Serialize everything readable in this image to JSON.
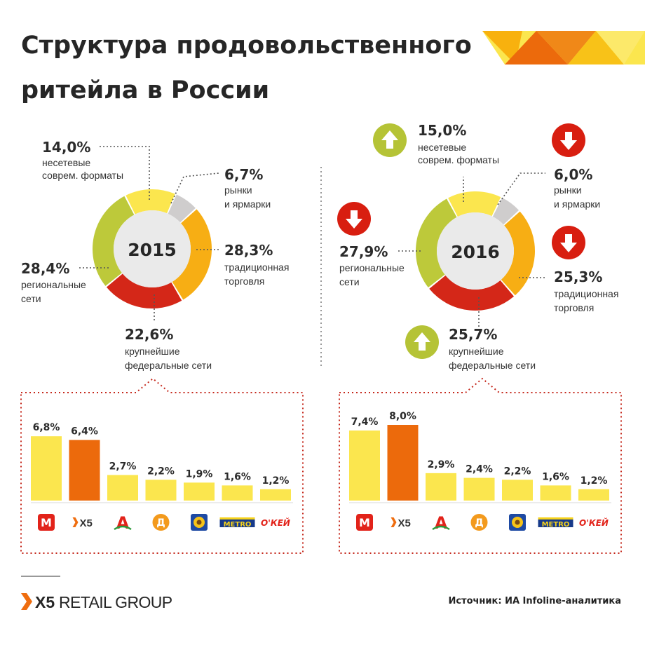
{
  "title_line1": "Структура продовольственного",
  "title_line2": "ритейла в России",
  "source": "Источник: ИА Infoline-аналитика",
  "brand": {
    "mark": "X5",
    "name": "RETAIL GROUP"
  },
  "colors": {
    "yellow_light": "#fbe64e",
    "gray": "#cfcdcd",
    "orange": "#f7ae14",
    "red": "#d42718",
    "green": "#bdc93a",
    "bar_yellow": "#fbe64e",
    "bar_orange": "#ec6a0c",
    "arrow_up": "#b5c336",
    "arrow_down": "#d81e10"
  },
  "retailers": [
    {
      "name": "Магнит",
      "glyph": "М"
    },
    {
      "name": "X5",
      "glyph": "X5"
    },
    {
      "name": "Ашан",
      "glyph": "A"
    },
    {
      "name": "Дикси",
      "glyph": "Д"
    },
    {
      "name": "Лента",
      "glyph": "✿"
    },
    {
      "name": "METRO",
      "glyph": "METRO"
    },
    {
      "name": "О'КЕЙ",
      "glyph": "О'КЕЙ"
    }
  ],
  "chart_data": [
    {
      "type": "pie",
      "year": "2015",
      "segments": [
        {
          "key": "nonchain",
          "value": 14.0,
          "value_label": "14,0%",
          "label_lines": [
            "несетевые",
            "соврем. форматы"
          ],
          "color": "#fbe64e"
        },
        {
          "key": "markets",
          "value": 6.7,
          "value_label": "6,7%",
          "label_lines": [
            "рынки",
            "и ярмарки"
          ],
          "color": "#cfcdcd"
        },
        {
          "key": "traditional",
          "value": 28.3,
          "value_label": "28,3%",
          "label_lines": [
            "традиционная",
            "торговля"
          ],
          "color": "#f7ae14"
        },
        {
          "key": "federal",
          "value": 22.6,
          "value_label": "22,6%",
          "label_lines": [
            "крупнейшие",
            "федеральные сети"
          ],
          "color": "#d42718"
        },
        {
          "key": "regional",
          "value": 28.4,
          "value_label": "28,4%",
          "label_lines": [
            "региональные",
            "сети"
          ],
          "color": "#bdc93a"
        }
      ]
    },
    {
      "type": "pie",
      "year": "2016",
      "segments": [
        {
          "key": "nonchain",
          "value": 15.0,
          "value_label": "15,0%",
          "label_lines": [
            "несетевые",
            "соврем. форматы"
          ],
          "color": "#fbe64e",
          "trend": "up"
        },
        {
          "key": "markets",
          "value": 6.0,
          "value_label": "6,0%",
          "label_lines": [
            "рынки",
            "и ярмарки"
          ],
          "color": "#cfcdcd",
          "trend": "down"
        },
        {
          "key": "traditional",
          "value": 25.3,
          "value_label": "25,3%",
          "label_lines": [
            "традиционная",
            "торговля"
          ],
          "color": "#f7ae14",
          "trend": "down"
        },
        {
          "key": "federal",
          "value": 25.7,
          "value_label": "25,7%",
          "label_lines": [
            "крупнейшие",
            "федеральные сети"
          ],
          "color": "#d42718",
          "trend": "up"
        },
        {
          "key": "regional",
          "value": 27.9,
          "value_label": "27,9%",
          "label_lines": [
            "региональные",
            "сети"
          ],
          "color": "#bdc93a",
          "trend": "down"
        }
      ]
    },
    {
      "type": "bar",
      "year": "2015",
      "categories": [
        "Магнит",
        "X5",
        "Ашан",
        "Дикси",
        "Лента",
        "METRO",
        "О'КЕЙ"
      ],
      "values": [
        6.8,
        6.4,
        2.7,
        2.2,
        1.9,
        1.6,
        1.2
      ],
      "labels": [
        "6,8%",
        "6,4%",
        "2,7%",
        "2,2%",
        "1,9%",
        "1,6%",
        "1,2%"
      ],
      "highlight": "X5",
      "ylim": [
        0,
        8
      ]
    },
    {
      "type": "bar",
      "year": "2016",
      "categories": [
        "Магнит",
        "X5",
        "Ашан",
        "Дикси",
        "Лента",
        "METRO",
        "О'КЕЙ"
      ],
      "values": [
        7.4,
        8.0,
        2.9,
        2.4,
        2.2,
        1.6,
        1.2
      ],
      "labels": [
        "7,4%",
        "8,0%",
        "2,9%",
        "2,4%",
        "2,2%",
        "1,6%",
        "1,2%"
      ],
      "highlight": "X5",
      "ylim": [
        0,
        8
      ]
    }
  ]
}
